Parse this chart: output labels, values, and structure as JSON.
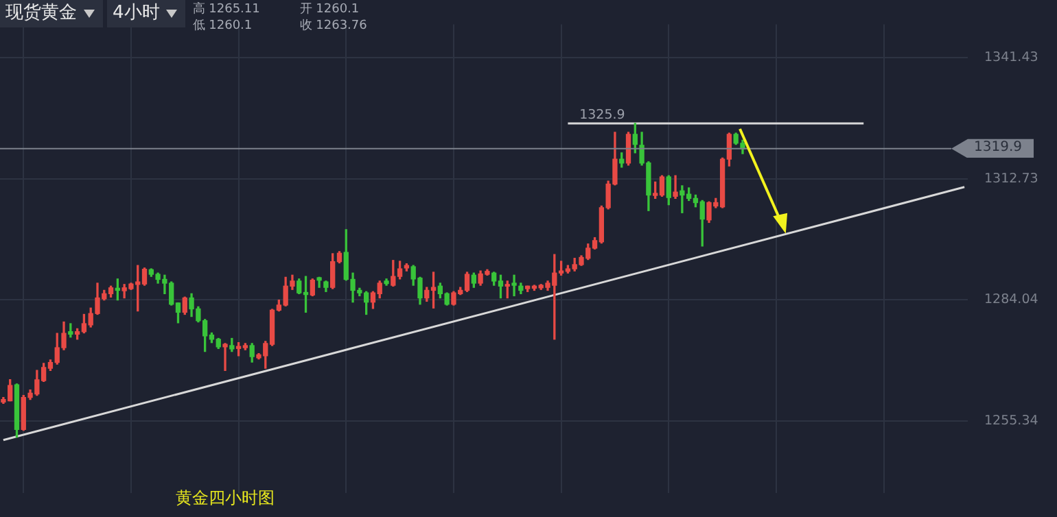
{
  "chart_data": {
    "type": "candlestick",
    "title": "黄金四小时图",
    "annotations": [
      "现货黄金",
      "4小时",
      "高 1265.11",
      "开 1260.1",
      "低 1260.1",
      "收 1263.76",
      {
        "text": "1325.9",
        "y": 1325.9
      }
    ],
    "categories": [
      null,
      null,
      null,
      null,
      null,
      null,
      null,
      null,
      null,
      null,
      null,
      null,
      null,
      null,
      null,
      null,
      null,
      null,
      null,
      null,
      null,
      null,
      null,
      null,
      null,
      null,
      null,
      null,
      null,
      null,
      null,
      null,
      null,
      null,
      null,
      null,
      null,
      null,
      null,
      null,
      null,
      null,
      null,
      null,
      null,
      null,
      null,
      null,
      null,
      null,
      null,
      null,
      null,
      null,
      null,
      null,
      null,
      null,
      null,
      null,
      null,
      null,
      null,
      null,
      null,
      null,
      null,
      null,
      null,
      null,
      null,
      null,
      null,
      null,
      null,
      null,
      null,
      null,
      null,
      null,
      null,
      null,
      null,
      null,
      null,
      null,
      null,
      null,
      null,
      null,
      null,
      null,
      null,
      null,
      null,
      null,
      null,
      null,
      null,
      null,
      null,
      null,
      null,
      null,
      null,
      null,
      null,
      null,
      null,
      null,
      null,
      null,
      null,
      null,
      null,
      null,
      null,
      null,
      null,
      null,
      null,
      null,
      null,
      null,
      null,
      null,
      null,
      null,
      null,
      null,
      null,
      null,
      null,
      null,
      null,
      null,
      null,
      null,
      null,
      null,
      null,
      null,
      null,
      null
    ],
    "ohlc": [
      [
        1259.8,
        1260.9,
        1259.5,
        1260.4
      ],
      [
        1260.1,
        1265.11,
        1260.1,
        1263.76
      ],
      [
        1263.9,
        1264.1,
        1251.46,
        1253.3
      ],
      [
        1253.3,
        1261.4,
        1253.1,
        1260.9
      ],
      [
        1260.9,
        1262.7,
        1260.4,
        1261.9
      ],
      [
        1261.7,
        1267.3,
        1261.4,
        1265.1
      ],
      [
        1264.9,
        1269.0,
        1264.7,
        1268.0
      ],
      [
        1267.8,
        1269.8,
        1267.3,
        1269.2
      ],
      [
        1269.2,
        1276.1,
        1268.8,
        1272.7
      ],
      [
        1272.7,
        1278.8,
        1272.2,
        1276.1
      ],
      [
        1276.5,
        1278.4,
        1275.2,
        1275.9
      ],
      [
        1275.9,
        1277.2,
        1274.7,
        1276.5
      ],
      [
        1276.5,
        1280.6,
        1276.2,
        1278.4
      ],
      [
        1278.1,
        1282.1,
        1277.6,
        1280.8
      ],
      [
        1280.8,
        1288.0,
        1280.6,
        1284.5
      ],
      [
        1284.3,
        1286.3,
        1284.0,
        1285.5
      ],
      [
        1285.5,
        1287.3,
        1284.7,
        1286.9
      ],
      [
        1286.8,
        1289.0,
        1284.0,
        1286.3
      ],
      [
        1286.2,
        1287.7,
        1284.5,
        1286.9
      ],
      [
        1286.7,
        1288.0,
        1286.5,
        1287.8
      ],
      [
        1287.7,
        1292.2,
        1281.4,
        1288.3
      ],
      [
        1287.8,
        1291.6,
        1287.5,
        1291.3
      ],
      [
        1291.2,
        1291.4,
        1289.6,
        1290.1
      ],
      [
        1290.1,
        1290.4,
        1288.0,
        1288.9
      ],
      [
        1288.9,
        1289.9,
        1285.5,
        1288.0
      ],
      [
        1288.0,
        1288.3,
        1282.8,
        1283.0
      ],
      [
        1283.3,
        1283.3,
        1278.6,
        1281.1
      ],
      [
        1281.1,
        1284.7,
        1280.6,
        1284.5
      ],
      [
        1284.5,
        1285.5,
        1280.1,
        1281.9
      ],
      [
        1281.9,
        1282.4,
        1278.8,
        1279.1
      ],
      [
        1279.1,
        1279.4,
        1271.8,
        1275.5
      ],
      [
        1275.7,
        1276.2,
        1273.9,
        1274.7
      ],
      [
        1274.7,
        1274.9,
        1272.5,
        1272.9
      ],
      [
        1272.9,
        1273.7,
        1267.3,
        1273.5
      ],
      [
        1273.2,
        1274.9,
        1271.8,
        1272.4
      ],
      [
        1272.5,
        1273.9,
        1270.8,
        1273.0
      ],
      [
        1272.7,
        1273.7,
        1272.2,
        1273.2
      ],
      [
        1273.2,
        1273.7,
        1269.3,
        1270.6
      ],
      [
        1270.3,
        1271.3,
        1270.0,
        1271.0
      ],
      [
        1270.8,
        1274.2,
        1267.8,
        1273.7
      ],
      [
        1273.5,
        1281.8,
        1273.2,
        1281.6
      ],
      [
        1281.6,
        1284.0,
        1281.4,
        1282.8
      ],
      [
        1282.8,
        1289.4,
        1282.6,
        1287.3
      ],
      [
        1287.3,
        1289.9,
        1286.5,
        1288.5
      ],
      [
        1288.5,
        1289.0,
        1285.5,
        1285.7
      ],
      [
        1285.8,
        1289.6,
        1281.1,
        1285.3
      ],
      [
        1285.2,
        1289.0,
        1285.0,
        1288.7
      ],
      [
        1289.3,
        1289.4,
        1287.0,
        1288.7
      ],
      [
        1288.3,
        1288.5,
        1286.0,
        1287.0
      ],
      [
        1287.0,
        1295.0,
        1286.7,
        1293.1
      ],
      [
        1293.1,
        1295.5,
        1292.8,
        1295.1
      ],
      [
        1295.3,
        1300.7,
        1288.7,
        1288.9
      ],
      [
        1288.9,
        1290.4,
        1283.5,
        1286.3
      ],
      [
        1286.3,
        1286.8,
        1285.0,
        1285.7
      ],
      [
        1285.7,
        1286.0,
        1280.6,
        1283.5
      ],
      [
        1283.5,
        1286.0,
        1282.0,
        1285.7
      ],
      [
        1285.5,
        1288.5,
        1284.5,
        1288.0
      ],
      [
        1288.5,
        1289.0,
        1287.5,
        1287.9
      ],
      [
        1287.5,
        1293.4,
        1287.3,
        1289.6
      ],
      [
        1289.6,
        1293.2,
        1289.0,
        1291.4
      ],
      [
        1291.6,
        1292.6,
        1290.9,
        1292.2
      ],
      [
        1291.9,
        1292.2,
        1287.5,
        1289.0
      ],
      [
        1289.2,
        1289.4,
        1283.0,
        1284.5
      ],
      [
        1284.5,
        1287.0,
        1283.7,
        1286.3
      ],
      [
        1286.3,
        1290.6,
        1282.1,
        1287.0
      ],
      [
        1287.3,
        1288.0,
        1284.5,
        1285.5
      ],
      [
        1285.5,
        1285.7,
        1282.8,
        1283.0
      ],
      [
        1283.0,
        1286.0,
        1282.8,
        1285.7
      ],
      [
        1285.5,
        1287.0,
        1285.3,
        1286.3
      ],
      [
        1286.3,
        1290.6,
        1286.0,
        1290.1
      ],
      [
        1289.9,
        1290.4,
        1287.0,
        1288.0
      ],
      [
        1288.0,
        1290.9,
        1287.5,
        1290.2
      ],
      [
        1290.1,
        1291.2,
        1289.9,
        1290.8
      ],
      [
        1290.4,
        1290.6,
        1287.5,
        1288.5
      ],
      [
        1288.5,
        1289.9,
        1284.5,
        1287.3
      ],
      [
        1287.3,
        1288.5,
        1284.5,
        1287.7
      ],
      [
        1288.0,
        1289.9,
        1285.0,
        1287.5
      ],
      [
        1287.3,
        1288.0,
        1285.5,
        1286.3
      ],
      [
        1286.7,
        1287.3,
        1286.0,
        1287.3
      ],
      [
        1286.8,
        1287.5,
        1286.3,
        1287.3
      ],
      [
        1286.9,
        1287.7,
        1286.5,
        1287.5
      ],
      [
        1287.0,
        1288.5,
        1286.3,
        1288.0
      ],
      [
        1287.5,
        1294.8,
        1274.7,
        1290.4
      ],
      [
        1290.4,
        1293.2,
        1289.9,
        1290.9
      ],
      [
        1290.8,
        1292.2,
        1290.4,
        1291.4
      ],
      [
        1291.4,
        1293.9,
        1290.9,
        1292.4
      ],
      [
        1292.4,
        1294.5,
        1292.2,
        1294.1
      ],
      [
        1293.9,
        1297.3,
        1293.6,
        1296.3
      ],
      [
        1296.3,
        1298.8,
        1296.1,
        1298.1
      ],
      [
        1297.8,
        1306.3,
        1297.5,
        1305.9
      ],
      [
        1305.9,
        1312.2,
        1305.6,
        1311.5
      ],
      [
        1311.5,
        1323.8,
        1311.3,
        1317.4
      ],
      [
        1317.4,
        1318.9,
        1315.5,
        1316.5
      ],
      [
        1316.5,
        1323.8,
        1316.0,
        1323.3
      ],
      [
        1323.3,
        1325.9,
        1318.9,
        1320.9
      ],
      [
        1320.7,
        1323.8,
        1316.0,
        1316.5
      ],
      [
        1316.5,
        1316.8,
        1305.2,
        1308.9
      ],
      [
        1308.8,
        1312.0,
        1308.1,
        1309.3
      ],
      [
        1308.9,
        1313.5,
        1308.6,
        1313.2
      ],
      [
        1313.2,
        1313.5,
        1306.6,
        1308.3
      ],
      [
        1308.6,
        1313.5,
        1308.1,
        1309.6
      ],
      [
        1309.9,
        1311.1,
        1304.7,
        1308.9
      ],
      [
        1309.1,
        1310.6,
        1307.6,
        1308.1
      ],
      [
        1308.1,
        1308.9,
        1306.1,
        1307.1
      ],
      [
        1307.3,
        1307.6,
        1296.8,
        1303.2
      ],
      [
        1303.0,
        1307.3,
        1302.4,
        1307.1
      ],
      [
        1306.3,
        1308.1,
        1305.9,
        1307.1
      ],
      [
        1306.1,
        1317.7,
        1305.9,
        1317.4
      ],
      [
        1317.4,
        1323.6,
        1315.8,
        1323.3
      ],
      [
        1323.3,
        1323.6,
        1320.9,
        1321.2
      ],
      [
        1321.2,
        1321.9,
        1318.7,
        1319.9
      ],
      null,
      null,
      null,
      null,
      null,
      null,
      null,
      null,
      null,
      null,
      null,
      null,
      null,
      null,
      null,
      null,
      null,
      null,
      null,
      null,
      null,
      null,
      null,
      null,
      null,
      null,
      null,
      null,
      null,
      null,
      null,
      null,
      null
    ],
    "colors": [
      "#e84a45",
      "#e84a45",
      "#39c43a",
      "#e84a45",
      "#e84a45",
      "#e84a45",
      "#e84a45",
      "#e84a45",
      "#e84a45",
      "#e84a45",
      "#39c43a",
      "#e84a45",
      "#e84a45",
      "#e84a45",
      "#e84a45",
      "#e84a45",
      "#e84a45",
      "#39c43a",
      "#e84a45",
      "#e84a45",
      "#e84a45",
      "#e84a45",
      "#39c43a",
      "#39c43a",
      "#39c43a",
      "#39c43a",
      "#39c43a",
      "#e84a45",
      "#39c43a",
      "#39c43a",
      "#39c43a",
      "#39c43a",
      "#39c43a",
      "#e84a45",
      "#39c43a",
      "#e84a45",
      "#e84a45",
      "#39c43a",
      "#e84a45",
      "#e84a45",
      "#e84a45",
      "#e84a45",
      "#e84a45",
      "#e84a45",
      "#39c43a",
      "#39c43a",
      "#e84a45",
      "#39c43a",
      "#39c43a",
      "#e84a45",
      "#e84a45",
      "#39c43a",
      "#39c43a",
      "#39c43a",
      "#39c43a",
      "#e84a45",
      "#e84a45",
      "#39c43a",
      "#e84a45",
      "#e84a45",
      "#e84a45",
      "#39c43a",
      "#39c43a",
      "#e84a45",
      "#e84a45",
      "#39c43a",
      "#39c43a",
      "#e84a45",
      "#e84a45",
      "#e84a45",
      "#39c43a",
      "#e84a45",
      "#e84a45",
      "#39c43a",
      "#39c43a",
      "#e84a45",
      "#39c43a",
      "#39c43a",
      "#e84a45",
      "#e84a45",
      "#e84a45",
      "#e84a45",
      "#e84a45",
      "#e84a45",
      "#e84a45",
      "#e84a45",
      "#e84a45",
      "#e84a45",
      "#e84a45",
      "#e84a45",
      "#e84a45",
      "#e84a45",
      "#39c43a",
      "#e84a45",
      "#39c43a",
      "#39c43a",
      "#39c43a",
      "#e84a45",
      "#e84a45",
      "#39c43a",
      "#e84a45",
      "#39c43a",
      "#39c43a",
      "#39c43a",
      "#39c43a",
      "#e84a45",
      "#e84a45",
      "#e84a45",
      "#e84a45",
      "#39c43a",
      "#39c43a",
      null,
      null,
      null,
      null,
      null,
      null,
      null,
      null,
      null,
      null,
      null,
      null,
      null,
      null,
      null,
      null,
      null,
      null,
      null,
      null,
      null,
      null,
      null,
      null,
      null,
      null,
      null,
      null,
      null,
      null,
      null,
      null,
      null
    ],
    "series": [
      {
        "type": "line",
        "color": "#d8d8d8",
        "values": [
          1250.8,
          null,
          null,
          null,
          null,
          null,
          null,
          null,
          null,
          null,
          null,
          null,
          null,
          null,
          null,
          null,
          null,
          null,
          null,
          null,
          null,
          null,
          null,
          null,
          null,
          null,
          null,
          null,
          null,
          null,
          null,
          null,
          null,
          null,
          null,
          null,
          null,
          null,
          null,
          null,
          null,
          null,
          null,
          null,
          null,
          null,
          null,
          null,
          null,
          null,
          null,
          null,
          null,
          null,
          null,
          null,
          null,
          null,
          null,
          null,
          null,
          null,
          null,
          null,
          null,
          null,
          null,
          null,
          null,
          null,
          null,
          null,
          null,
          null,
          null,
          null,
          null,
          null,
          null,
          null,
          null,
          null,
          null,
          null,
          null,
          null,
          null,
          null,
          null,
          null,
          null,
          null,
          null,
          null,
          null,
          null,
          null,
          null,
          null,
          null,
          null,
          null,
          null,
          null,
          null,
          null,
          null,
          null,
          null,
          null,
          null,
          null,
          null,
          null,
          null,
          null,
          null,
          null,
          null,
          null,
          null,
          null,
          null,
          null,
          null,
          null,
          null,
          null,
          null,
          null,
          null,
          null,
          null,
          null,
          null,
          null,
          null,
          null,
          null,
          null,
          null,
          null,
          null,
          1310.8
        ]
      },
      {
        "type": "line",
        "color": "#d8d8d8",
        "values": [
          null,
          null,
          null,
          null,
          null,
          null,
          null,
          null,
          null,
          null,
          null,
          null,
          null,
          null,
          null,
          null,
          null,
          null,
          null,
          null,
          null,
          null,
          null,
          null,
          null,
          null,
          null,
          null,
          null,
          null,
          null,
          null,
          null,
          null,
          null,
          null,
          null,
          null,
          null,
          null,
          null,
          null,
          null,
          null,
          null,
          null,
          null,
          null,
          null,
          null,
          null,
          null,
          null,
          null,
          null,
          null,
          null,
          null,
          null,
          null,
          null,
          null,
          null,
          null,
          null,
          null,
          null,
          null,
          null,
          null,
          null,
          null,
          null,
          null,
          null,
          null,
          null,
          null,
          null,
          null,
          null,
          null,
          null,
          null,
          1325.9,
          null,
          null,
          null,
          null,
          null,
          null,
          null,
          null,
          null,
          null,
          null,
          null,
          null,
          null,
          null,
          null,
          null,
          null,
          null,
          null,
          null,
          null,
          null,
          null,
          null,
          null,
          null,
          null,
          null,
          null,
          null,
          null,
          null,
          null,
          null,
          null,
          null,
          null,
          null,
          null,
          null,
          null,
          null,
          1325.9,
          null,
          null,
          null,
          null,
          null,
          null,
          null,
          null,
          null,
          null,
          null,
          null,
          null,
          null,
          null
        ]
      }
    ],
    "ref_lines": [
      {
        "axis": "y",
        "value": 1319.9,
        "label": "1319.9",
        "color": "#7d828d"
      }
    ],
    "ylim": [
      1238.3,
      1349.4
    ],
    "yticks": [
      1255.34,
      1284.04,
      1312.73,
      1341.43
    ],
    "grid": true,
    "legend": false,
    "tick_labels": "y"
  }
}
